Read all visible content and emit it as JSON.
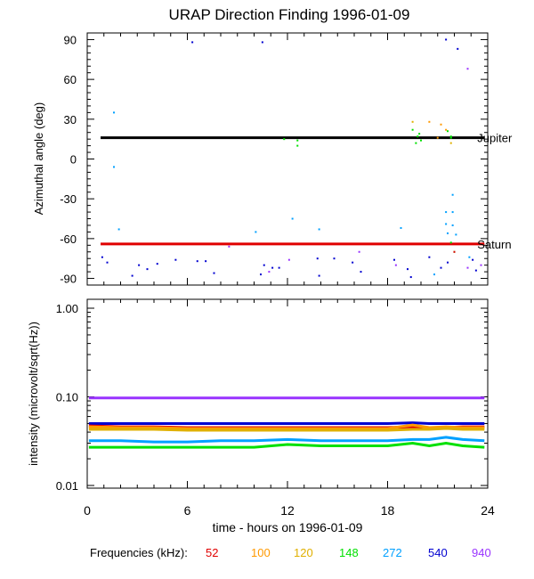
{
  "title": "URAP Direction Finding  1996-01-09",
  "xlabel": "time - hours on 1996-01-09",
  "legend": {
    "label": "Frequencies (kHz):",
    "items": [
      {
        "text": "52",
        "color": "#e00000"
      },
      {
        "text": "100",
        "color": "#ff9900"
      },
      {
        "text": "120",
        "color": "#e0b000"
      },
      {
        "text": "148",
        "color": "#00e000"
      },
      {
        "text": "272",
        "color": "#00a0ff"
      },
      {
        "text": "540",
        "color": "#0000d0"
      },
      {
        "text": "940",
        "color": "#9933ff"
      }
    ]
  },
  "chart_data": [
    {
      "type": "scatter",
      "title": "URAP Direction Finding  1996-01-09",
      "ylabel": "Azimuthal angle (deg)",
      "xlim": [
        0,
        24
      ],
      "ylim": [
        -95,
        95
      ],
      "yticks": [
        -90,
        -60,
        -30,
        0,
        30,
        60,
        90
      ],
      "ytick_labels": [
        "-90",
        "-60",
        "-30",
        "0",
        "30",
        "60",
        "90"
      ],
      "reference_lines": [
        {
          "name": "Jupiter",
          "y": 16,
          "color": "#000000",
          "x_start": 0.8,
          "x_end": 23.8
        },
        {
          "name": "Saturn",
          "y": -64,
          "color": "#e00000",
          "x_start": 0.8,
          "x_end": 23.8
        }
      ],
      "series": [
        {
          "color": "#00a0ff",
          "points": [
            [
              1.6,
              35
            ],
            [
              1.6,
              -6
            ],
            [
              1.9,
              -53
            ],
            [
              10.1,
              -55
            ],
            [
              12.3,
              -45
            ],
            [
              13.9,
              -53
            ],
            [
              18.8,
              -52
            ],
            [
              21.9,
              -27
            ],
            [
              21.5,
              -40
            ],
            [
              21.5,
              -49
            ],
            [
              21.6,
              -56
            ],
            [
              21.9,
              -50
            ],
            [
              22.1,
              -57
            ],
            [
              20.8,
              -87
            ],
            [
              21.9,
              -40
            ],
            [
              22.9,
              -74
            ]
          ]
        },
        {
          "color": "#00e000",
          "points": [
            [
              11.8,
              15
            ],
            [
              12.6,
              14
            ],
            [
              12.6,
              10
            ],
            [
              19.5,
              22
            ],
            [
              19.7,
              12
            ],
            [
              19.8,
              17
            ],
            [
              19.9,
              19
            ],
            [
              20.0,
              14
            ],
            [
              21.6,
              21
            ],
            [
              21.8,
              16
            ],
            [
              21.8,
              -63
            ],
            [
              22.0,
              -70
            ],
            [
              21.8,
              17
            ]
          ]
        },
        {
          "color": "#ff9900",
          "points": [
            [
              20.5,
              28
            ],
            [
              21.5,
              22
            ],
            [
              21.2,
              26
            ],
            [
              21.0,
              16
            ]
          ]
        },
        {
          "color": "#e0b000",
          "points": [
            [
              19.5,
              28
            ],
            [
              21.8,
              12
            ]
          ]
        },
        {
          "color": "#e00000",
          "points": [
            [
              22.0,
              -70
            ]
          ]
        },
        {
          "color": "#0000d0",
          "points": [
            [
              0.9,
              -74
            ],
            [
              1.2,
              -78
            ],
            [
              3.1,
              -80
            ],
            [
              3.6,
              -83
            ],
            [
              4.2,
              -79
            ],
            [
              5.3,
              -76
            ],
            [
              6.6,
              -77
            ],
            [
              7.1,
              -77
            ],
            [
              7.6,
              -86
            ],
            [
              10.6,
              -80
            ],
            [
              10.4,
              -87
            ],
            [
              11.5,
              -82
            ],
            [
              11.1,
              -82
            ],
            [
              13.8,
              -75
            ],
            [
              13.9,
              -88
            ],
            [
              14.8,
              -75
            ],
            [
              15.9,
              -78
            ],
            [
              16.4,
              -85
            ],
            [
              18.4,
              -76
            ],
            [
              19.2,
              -83
            ],
            [
              19.4,
              -89
            ],
            [
              20.5,
              -74
            ],
            [
              21.2,
              -82
            ],
            [
              21.6,
              -78
            ],
            [
              23.1,
              -76
            ],
            [
              23.3,
              -84
            ],
            [
              2.7,
              -88
            ],
            [
              6.3,
              88
            ],
            [
              10.5,
              88
            ],
            [
              21.5,
              90
            ],
            [
              22.2,
              83
            ]
          ]
        },
        {
          "color": "#9933ff",
          "points": [
            [
              8.5,
              -66
            ],
            [
              10.9,
              -85
            ],
            [
              12.1,
              -76
            ],
            [
              16.3,
              -70
            ],
            [
              18.5,
              -80
            ],
            [
              22.8,
              68
            ],
            [
              23.6,
              -80
            ],
            [
              22.8,
              -82
            ]
          ]
        }
      ]
    },
    {
      "type": "line",
      "ylabel": "intensity (microvolt/sqrt(Hz))",
      "xlabel": "time - hours on 1996-01-09",
      "xlim": [
        0,
        24
      ],
      "xticks": [
        0,
        6,
        12,
        18,
        24
      ],
      "xtick_labels": [
        "0",
        "6",
        "12",
        "18",
        "24"
      ],
      "ylim": [
        0.01,
        1.0
      ],
      "yscale": "log",
      "ytick_labels": [
        "0.01",
        "0.10",
        "1.00"
      ],
      "yticks": [
        0.01,
        0.1,
        1.0
      ],
      "x": [
        0.1,
        2,
        4,
        6,
        8,
        10,
        12,
        14,
        16,
        18,
        19.5,
        20.5,
        21.5,
        22.5,
        23.8
      ],
      "series": [
        {
          "name": "940",
          "color": "#9933ff",
          "values": [
            0.097,
            0.097,
            0.097,
            0.097,
            0.097,
            0.097,
            0.097,
            0.097,
            0.097,
            0.097,
            0.097,
            0.097,
            0.097,
            0.097,
            0.097
          ]
        },
        {
          "name": "540",
          "color": "#0000d0",
          "values": [
            0.05,
            0.05,
            0.05,
            0.05,
            0.05,
            0.05,
            0.05,
            0.05,
            0.05,
            0.05,
            0.051,
            0.05,
            0.05,
            0.05,
            0.05
          ]
        },
        {
          "name": "52",
          "color": "#e00000",
          "values": [
            0.047,
            0.046,
            0.046,
            0.045,
            0.045,
            0.045,
            0.045,
            0.045,
            0.045,
            0.045,
            0.046,
            0.045,
            0.045,
            0.046,
            0.046
          ]
        },
        {
          "name": "100",
          "color": "#ff9900",
          "values": [
            0.046,
            0.045,
            0.045,
            0.044,
            0.044,
            0.044,
            0.044,
            0.044,
            0.044,
            0.044,
            0.048,
            0.045,
            0.046,
            0.045,
            0.045
          ]
        },
        {
          "name": "120",
          "color": "#e0b000",
          "values": [
            0.043,
            0.043,
            0.043,
            0.042,
            0.042,
            0.042,
            0.042,
            0.042,
            0.042,
            0.042,
            0.043,
            0.043,
            0.044,
            0.043,
            0.043
          ]
        },
        {
          "name": "272",
          "color": "#00a0ff",
          "values": [
            0.032,
            0.032,
            0.031,
            0.031,
            0.032,
            0.032,
            0.033,
            0.032,
            0.032,
            0.032,
            0.033,
            0.033,
            0.035,
            0.033,
            0.032
          ]
        },
        {
          "name": "148",
          "color": "#00e000",
          "values": [
            0.027,
            0.027,
            0.027,
            0.027,
            0.027,
            0.027,
            0.029,
            0.028,
            0.028,
            0.028,
            0.03,
            0.028,
            0.03,
            0.028,
            0.027
          ]
        }
      ]
    }
  ]
}
